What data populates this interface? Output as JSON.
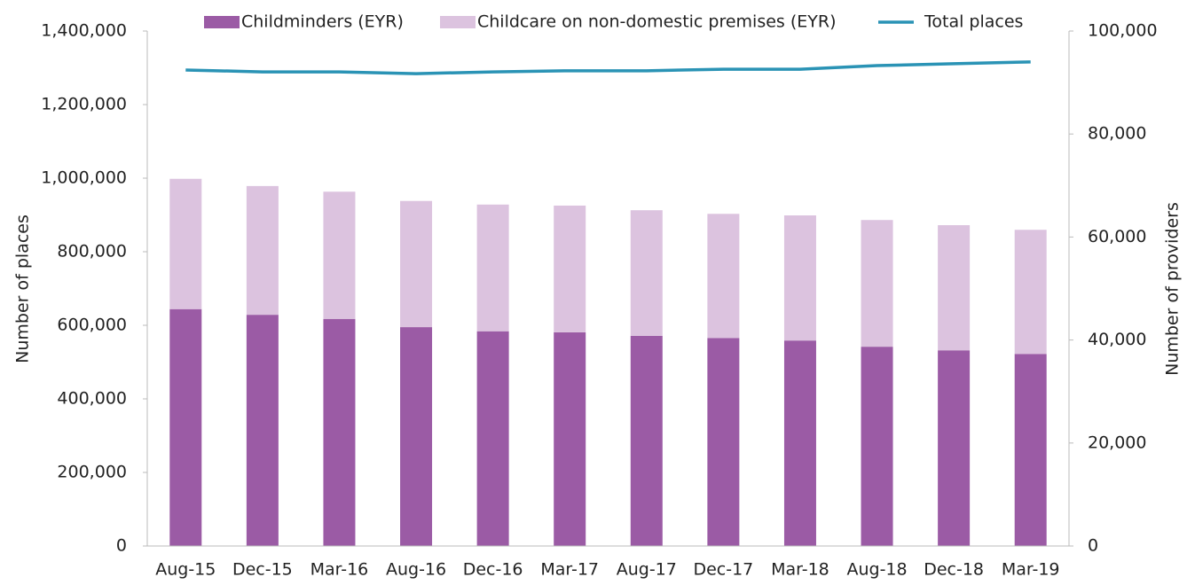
{
  "chart_data": {
    "type": "bar",
    "categories": [
      "Aug-15",
      "Dec-15",
      "Mar-16",
      "Aug-16",
      "Dec-16",
      "Mar-17",
      "Aug-17",
      "Dec-17",
      "Mar-18",
      "Aug-18",
      "Dec-18",
      "Mar-19"
    ],
    "stacked": true,
    "series": [
      {
        "name": "Childminders (EYR)",
        "color": "#9b5ba5",
        "axis": "y2",
        "type": "bar",
        "values": [
          46000,
          44900,
          44100,
          42500,
          41700,
          41500,
          40800,
          40400,
          39900,
          38700,
          38000,
          37300
        ]
      },
      {
        "name": "Childcare on non-domestic premises (EYR)",
        "color": "#dcc3df",
        "axis": "y2",
        "type": "bar",
        "values": [
          25300,
          25000,
          24700,
          24500,
          24600,
          24600,
          24400,
          24100,
          24300,
          24600,
          24300,
          24100
        ]
      },
      {
        "name": "Total places",
        "color": "#2a93b5",
        "axis": "y",
        "type": "line",
        "values": [
          1294000,
          1289000,
          1289000,
          1284000,
          1289000,
          1292000,
          1292000,
          1296000,
          1296000,
          1306000,
          1311000,
          1316000
        ]
      }
    ],
    "ylabel": "Number of places",
    "y2label": "Number of providers",
    "ylim": [
      0,
      1400000
    ],
    "yticks": [
      {
        "value": 0,
        "label": "0"
      },
      {
        "value": 200000,
        "label": "200,000"
      },
      {
        "value": 400000,
        "label": "400,000"
      },
      {
        "value": 600000,
        "label": "600,000"
      },
      {
        "value": 800000,
        "label": "800,000"
      },
      {
        "value": 1000000,
        "label": "1,000,000"
      },
      {
        "value": 1200000,
        "label": "1,200,000"
      },
      {
        "value": 1400000,
        "label": "1,400,000"
      }
    ],
    "y2lim": [
      0,
      100000
    ],
    "y2ticks": [
      {
        "value": 0,
        "label": "0"
      },
      {
        "value": 20000,
        "label": "20,000"
      },
      {
        "value": 40000,
        "label": "40,000"
      },
      {
        "value": 60000,
        "label": "60,000"
      },
      {
        "value": 80000,
        "label": "80,000"
      },
      {
        "value": 100000,
        "label": "100,000"
      }
    ],
    "legend": "top"
  }
}
